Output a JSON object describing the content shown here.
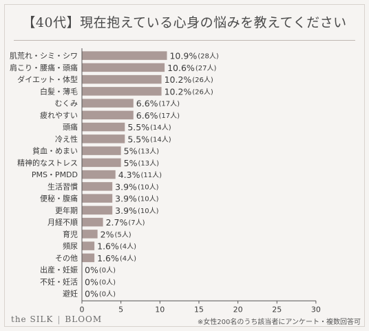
{
  "title": "【40代】現在抱えている心身の悩みを教えてください",
  "brand": {
    "left": "the SILK",
    "right": "BLOOM"
  },
  "footnote": "※女性200名のうち該当者にアンケート・複数回答可",
  "colors": {
    "bar": "#ab9a97",
    "axis": "#555555",
    "text": "#3a3a3a"
  },
  "chart_data": {
    "type": "bar",
    "orientation": "horizontal",
    "categories": [
      "肌荒れ・シミ・シワ",
      "肩こり・腰痛・頭痛",
      "ダイエット・体型",
      "白髪・薄毛",
      "むくみ",
      "疲れやすい",
      "頭痛",
      "冷え性",
      "貧血・めまい",
      "精神的なストレス",
      "PMS・PMDD",
      "生活習慣",
      "便秘・腹痛",
      "更年期",
      "月経不順",
      "育児",
      "頻尿",
      "その他",
      "出産・妊娠",
      "不妊・妊活",
      "避妊"
    ],
    "values": [
      10.9,
      10.6,
      10.2,
      10.2,
      6.6,
      6.6,
      5.5,
      5.5,
      5,
      5,
      4.3,
      3.9,
      3.9,
      3.9,
      2.7,
      2,
      1.6,
      1.6,
      0,
      0,
      0
    ],
    "data_labels": [
      "10.9%",
      "10.6%",
      "10.2%",
      "10.2%",
      "6.6%",
      "6.6%",
      "5.5%",
      "5.5%",
      "5%",
      "5%",
      "4.3%",
      "3.9%",
      "3.9%",
      "3.9%",
      "2.7%",
      "2%",
      "1.6%",
      "1.6%",
      "0%",
      "0%",
      "0%"
    ],
    "counts": [
      "(28人)",
      "(27人)",
      "(26人)",
      "(26人)",
      "(17人)",
      "(17人)",
      "(14人)",
      "(14人)",
      "(13人)",
      "(13人)",
      "(11人)",
      "(10人)",
      "(10人)",
      "(10人)",
      "(7人)",
      "(5人)",
      "(4人)",
      "(4人)",
      "(0人)",
      "(0人)",
      "(0人)"
    ],
    "xlim": [
      0,
      30
    ],
    "xticks": [
      "0",
      "5",
      "10",
      "15",
      "20",
      "25",
      "30"
    ],
    "grid": false
  }
}
